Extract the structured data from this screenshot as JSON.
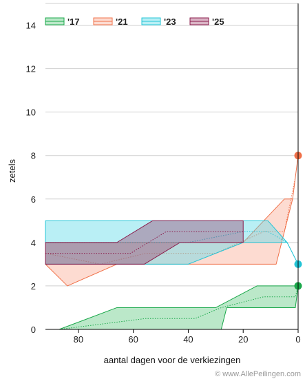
{
  "chart_data": {
    "type": "area",
    "xlabel": "aantal dagen voor de verkiezingen",
    "ylabel": "zetels",
    "xlim": [
      92,
      0
    ],
    "ylim": [
      0,
      15
    ],
    "x_ticks": [
      80,
      60,
      40,
      20,
      0
    ],
    "y_ticks": [
      0,
      2,
      4,
      6,
      8,
      10,
      12,
      14
    ],
    "grid": true,
    "legend_position": "top-left",
    "credit": "© www.AllePeilingen.com",
    "series": [
      {
        "name": "'17",
        "color": "#1aa84a",
        "fill": "rgba(60,190,100,0.35)",
        "band_upper": [
          [
            87,
            0
          ],
          [
            66,
            1
          ],
          [
            47,
            1
          ],
          [
            30,
            1
          ],
          [
            15,
            2
          ],
          [
            3,
            2
          ],
          [
            1,
            2
          ],
          [
            0,
            2
          ]
        ],
        "band_lower": [
          [
            87,
            0
          ],
          [
            45,
            0
          ],
          [
            28,
            0
          ],
          [
            26,
            1
          ],
          [
            10,
            1
          ],
          [
            3,
            1
          ],
          [
            1,
            1
          ],
          [
            0,
            2
          ]
        ],
        "final": 2
      },
      {
        "name": "'21",
        "color": "#f07048",
        "fill": "rgba(250,165,140,0.4)",
        "band_upper": [
          [
            92,
            4
          ],
          [
            60,
            4
          ],
          [
            45,
            4
          ],
          [
            20,
            4
          ],
          [
            5,
            6
          ],
          [
            2,
            6
          ],
          [
            0,
            8
          ]
        ],
        "band_lower": [
          [
            92,
            3
          ],
          [
            84,
            2
          ],
          [
            66,
            3
          ],
          [
            40,
            3
          ],
          [
            20,
            3
          ],
          [
            8,
            3
          ],
          [
            2,
            6
          ],
          [
            0,
            8
          ]
        ],
        "final": 8
      },
      {
        "name": "'23",
        "color": "#22c4d6",
        "fill": "rgba(100,220,232,0.45)",
        "band_upper": [
          [
            92,
            5
          ],
          [
            60,
            5
          ],
          [
            40,
            5
          ],
          [
            20,
            5
          ],
          [
            11,
            5
          ],
          [
            4,
            4
          ],
          [
            0,
            3
          ]
        ],
        "band_lower": [
          [
            92,
            3
          ],
          [
            60,
            3
          ],
          [
            40,
            3
          ],
          [
            20,
            4
          ],
          [
            11,
            4
          ],
          [
            4,
            4
          ],
          [
            0,
            3
          ]
        ],
        "final": 3
      },
      {
        "name": "'25",
        "color": "#8a1a4a",
        "fill": "rgba(150,40,90,0.35)",
        "band_upper": [
          [
            92,
            4
          ],
          [
            66,
            4
          ],
          [
            53,
            5
          ],
          [
            20,
            5
          ]
        ],
        "band_lower": [
          [
            92,
            3
          ],
          [
            56,
            3
          ],
          [
            43,
            4
          ],
          [
            20,
            4
          ]
        ],
        "final": null
      }
    ]
  }
}
